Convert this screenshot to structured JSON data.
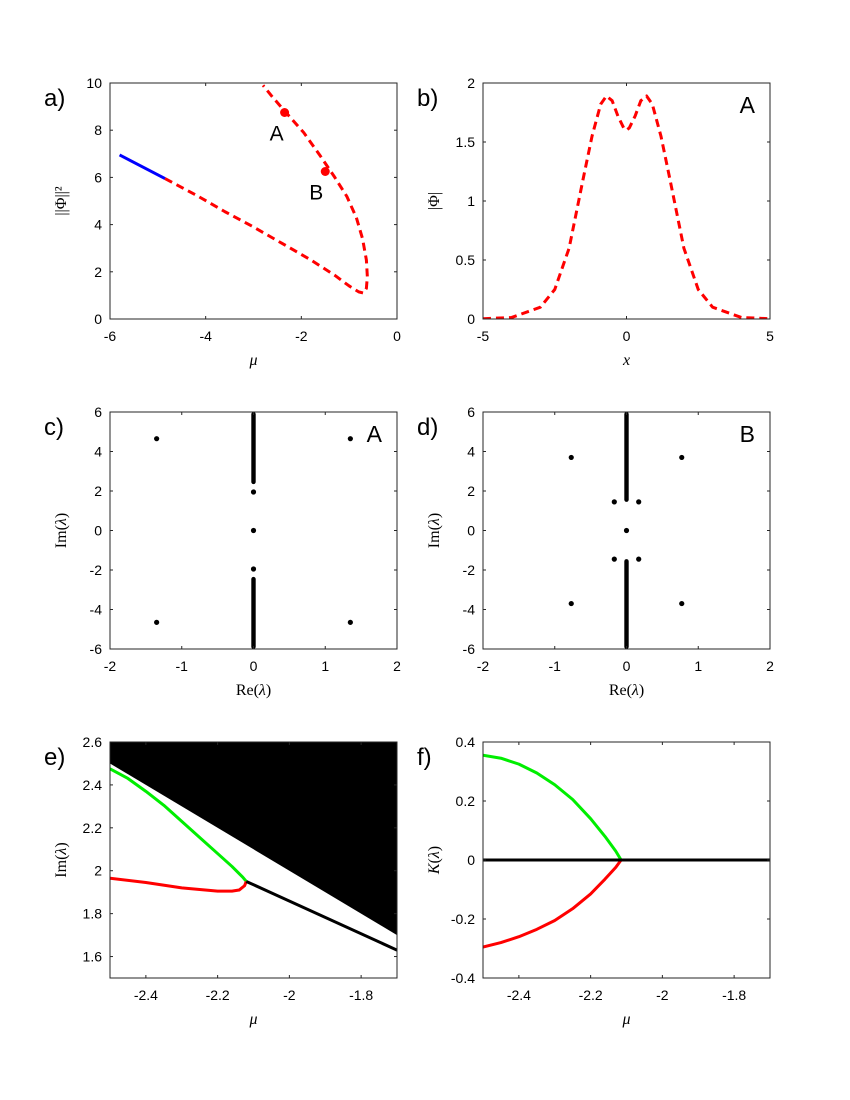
{
  "chart_data": [
    {
      "id": "a",
      "type": "line",
      "panel_label": "a)",
      "xlabel": "μ",
      "ylabel": "||Φ||²",
      "xlim": [
        -6,
        0
      ],
      "ylim": [
        0,
        10
      ],
      "xticks": [
        -6,
        -4,
        -2,
        0
      ],
      "yticks": [
        0,
        2,
        4,
        6,
        8,
        10
      ],
      "grid": false,
      "series": [
        {
          "color": "#0000ff",
          "style": "solid",
          "x": [
            -5.8,
            -4.85
          ],
          "y": [
            6.95,
            5.95
          ]
        },
        {
          "color": "#ff0000",
          "style": "dashed",
          "x": [
            -4.85,
            -4.2,
            -3.6,
            -3.0,
            -2.4,
            -1.8,
            -1.3,
            -1.0,
            -0.8,
            -0.7,
            -0.64,
            -0.62,
            -0.64,
            -0.72,
            -0.85,
            -1.05,
            -1.3,
            -1.6,
            -1.95,
            -2.3,
            -2.6,
            -2.8
          ],
          "y": [
            5.95,
            5.25,
            4.55,
            3.9,
            3.2,
            2.5,
            1.85,
            1.4,
            1.15,
            1.1,
            1.3,
            1.8,
            2.5,
            3.4,
            4.3,
            5.2,
            6.0,
            6.9,
            7.9,
            8.7,
            9.4,
            9.9
          ]
        }
      ],
      "points": [
        {
          "label": "A",
          "x": -2.35,
          "y": 8.75
        },
        {
          "label": "B",
          "x": -1.5,
          "y": 6.25
        }
      ]
    },
    {
      "id": "b",
      "type": "line",
      "panel_label": "b)",
      "corner_label": "A",
      "xlabel": "x",
      "ylabel": "|Φ|",
      "xlim": [
        -5,
        5
      ],
      "ylim": [
        0,
        2
      ],
      "xticks": [
        -5,
        0,
        5
      ],
      "yticks": [
        0,
        0.5,
        1,
        1.5,
        2
      ],
      "ytick_labels": [
        "0",
        "0.5",
        "1",
        "1.5",
        "2"
      ],
      "grid": false,
      "series": [
        {
          "color": "#ff0000",
          "style": "dashed",
          "x": [
            -5.0,
            -4.0,
            -3.0,
            -2.5,
            -2.0,
            -1.5,
            -1.2,
            -0.9,
            -0.7,
            -0.5,
            -0.3,
            -0.1,
            0.0,
            0.1,
            0.3,
            0.5,
            0.7,
            0.9,
            1.2,
            1.5,
            2.0,
            2.5,
            3.0,
            4.0,
            5.0
          ],
          "y": [
            0.002,
            0.013,
            0.1,
            0.25,
            0.6,
            1.2,
            1.55,
            1.82,
            1.89,
            1.85,
            1.72,
            1.62,
            1.6,
            1.62,
            1.72,
            1.85,
            1.89,
            1.82,
            1.55,
            1.2,
            0.6,
            0.25,
            0.1,
            0.013,
            0.002
          ]
        }
      ]
    },
    {
      "id": "c",
      "type": "scatter",
      "panel_label": "c)",
      "corner_label": "A",
      "xlabel": "Re(λ)",
      "ylabel": "Im(λ)",
      "xlim": [
        -2,
        2
      ],
      "ylim": [
        -6,
        6
      ],
      "xticks": [
        -2,
        -1,
        0,
        1,
        2
      ],
      "yticks": [
        -6,
        -4,
        -2,
        0,
        2,
        4,
        6
      ],
      "grid": false,
      "continuous_band": [
        {
          "x": 0,
          "y_from": 2.35,
          "y_to": 6
        },
        {
          "x": 0,
          "y_from": -6,
          "y_to": -2.35
        }
      ],
      "points": [
        {
          "x": -1.35,
          "y": 4.65
        },
        {
          "x": 1.35,
          "y": 4.65
        },
        {
          "x": -1.35,
          "y": -4.65
        },
        {
          "x": 1.35,
          "y": -4.65
        },
        {
          "x": 0,
          "y": 1.95
        },
        {
          "x": 0,
          "y": 0
        },
        {
          "x": 0,
          "y": -1.95
        }
      ]
    },
    {
      "id": "d",
      "type": "scatter",
      "panel_label": "d)",
      "corner_label": "B",
      "xlabel": "Re(λ)",
      "ylabel": "Im(λ)",
      "xlim": [
        -2,
        2
      ],
      "ylim": [
        -6,
        6
      ],
      "xticks": [
        -2,
        -1,
        0,
        1,
        2
      ],
      "yticks": [
        -6,
        -4,
        -2,
        0,
        2,
        4,
        6
      ],
      "grid": false,
      "continuous_band": [
        {
          "x": 0,
          "y_from": 1.45,
          "y_to": 6
        },
        {
          "x": 0,
          "y_from": -6,
          "y_to": -1.45
        }
      ],
      "points": [
        {
          "x": -0.77,
          "y": 3.7
        },
        {
          "x": 0.77,
          "y": 3.7
        },
        {
          "x": -0.77,
          "y": -3.7
        },
        {
          "x": 0.77,
          "y": -3.7
        },
        {
          "x": -0.17,
          "y": 1.45
        },
        {
          "x": 0.17,
          "y": 1.45
        },
        {
          "x": -0.17,
          "y": -1.45
        },
        {
          "x": 0.17,
          "y": -1.45
        },
        {
          "x": 0,
          "y": 0
        }
      ]
    },
    {
      "id": "e",
      "type": "line",
      "panel_label": "e)",
      "xlabel": "μ",
      "ylabel": "Im(λ)",
      "xlim": [
        -2.5,
        -1.7
      ],
      "ylim": [
        1.5,
        2.6
      ],
      "xticks": [
        -2.4,
        -2.2,
        -2,
        -1.8
      ],
      "yticks": [
        1.6,
        1.8,
        2,
        2.2,
        2.4,
        2.6
      ],
      "ytick_labels": [
        "1.6",
        "1.8",
        "2",
        "2.2",
        "2.4",
        "2.6"
      ],
      "grid": false,
      "filled_region": {
        "color": "#000000",
        "x": [
          -2.5,
          -1.7,
          -1.7,
          -2.5
        ],
        "y": [
          2.5,
          1.7,
          2.6,
          2.6
        ]
      },
      "series": [
        {
          "color": "#00ee00",
          "style": "solid",
          "x": [
            -2.5,
            -2.45,
            -2.4,
            -2.35,
            -2.3,
            -2.25,
            -2.2,
            -2.16,
            -2.13,
            -2.12
          ],
          "y": [
            2.475,
            2.43,
            2.37,
            2.305,
            2.23,
            2.155,
            2.08,
            2.02,
            1.97,
            1.95
          ]
        },
        {
          "color": "#ff0000",
          "style": "solid",
          "x": [
            -2.5,
            -2.4,
            -2.3,
            -2.2,
            -2.16,
            -2.14,
            -2.125,
            -2.12
          ],
          "y": [
            1.965,
            1.945,
            1.92,
            1.905,
            1.905,
            1.91,
            1.93,
            1.95
          ]
        },
        {
          "color": "#000000",
          "style": "solid",
          "x": [
            -2.12,
            -1.7
          ],
          "y": [
            1.95,
            1.63
          ]
        }
      ]
    },
    {
      "id": "f",
      "type": "line",
      "panel_label": "f)",
      "xlabel": "μ",
      "ylabel": "K(λ)",
      "xlim": [
        -2.5,
        -1.7
      ],
      "ylim": [
        -0.4,
        0.4
      ],
      "xticks": [
        -2.4,
        -2.2,
        -2,
        -1.8
      ],
      "yticks": [
        -0.4,
        -0.2,
        0,
        0.2,
        0.4
      ],
      "ytick_labels": [
        "-0.4",
        "-0.2",
        "0",
        "0.2",
        "0.4"
      ],
      "grid": false,
      "series": [
        {
          "color": "#00ee00",
          "style": "solid",
          "x": [
            -2.5,
            -2.45,
            -2.4,
            -2.35,
            -2.3,
            -2.25,
            -2.2,
            -2.16,
            -2.13,
            -2.115
          ],
          "y": [
            0.355,
            0.345,
            0.325,
            0.295,
            0.255,
            0.205,
            0.14,
            0.08,
            0.03,
            0.0
          ]
        },
        {
          "color": "#ff0000",
          "style": "solid",
          "x": [
            -2.5,
            -2.45,
            -2.4,
            -2.35,
            -2.3,
            -2.25,
            -2.2,
            -2.16,
            -2.13,
            -2.115
          ],
          "y": [
            -0.295,
            -0.28,
            -0.26,
            -0.235,
            -0.205,
            -0.165,
            -0.115,
            -0.065,
            -0.025,
            0.0
          ]
        },
        {
          "color": "#000000",
          "style": "solid",
          "x": [
            -2.5,
            -1.7
          ],
          "y": [
            0.0,
            0.0
          ]
        }
      ]
    }
  ]
}
